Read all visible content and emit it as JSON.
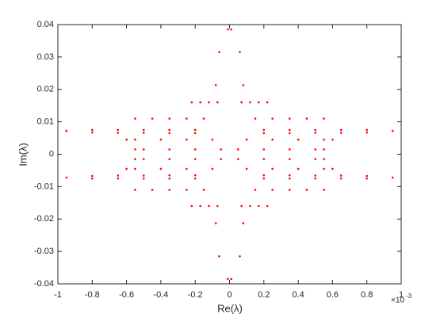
{
  "chart_data": {
    "type": "scatter",
    "xlabel": "Re(λ)",
    "ylabel": "Im(λ)",
    "x_exponent_base": "×10",
    "x_exponent": "-3",
    "color": "#ff0000",
    "xlim": [
      -1,
      1
    ],
    "xticks": [
      -1,
      -0.8,
      -0.6,
      -0.4,
      -0.2,
      0,
      0.2,
      0.4,
      0.6,
      0.8,
      1
    ],
    "ylim": [
      -0.04,
      0.04
    ],
    "yticks": [
      -0.04,
      -0.03,
      -0.02,
      -0.01,
      0,
      0.01,
      0.02,
      0.03,
      0.04
    ],
    "x": [
      0.01,
      0.06,
      0.08,
      0.07,
      0.12,
      0.17,
      0.22,
      0.15,
      0.25,
      0.35,
      0.45,
      0.55,
      0.2,
      0.35,
      0.5,
      0.65,
      0.8,
      0.95,
      0.2,
      0.35,
      0.5,
      0.65,
      0.8,
      0.1,
      0.25,
      0.4,
      0.55,
      0.6,
      0.05,
      0.2,
      0.35,
      0.5,
      0.55,
      -0.01,
      -0.06,
      -0.08,
      -0.07,
      -0.12,
      -0.17,
      -0.22,
      -0.15,
      -0.25,
      -0.35,
      -0.45,
      -0.55,
      -0.2,
      -0.35,
      -0.5,
      -0.65,
      -0.8,
      -0.95,
      -0.2,
      -0.35,
      -0.5,
      -0.65,
      -0.8,
      -0.1,
      -0.25,
      -0.4,
      -0.55,
      -0.6,
      -0.05,
      -0.2,
      -0.35,
      -0.5,
      -0.55,
      0.01,
      0.06,
      0.08,
      0.07,
      0.12,
      0.17,
      0.22,
      0.15,
      0.25,
      0.35,
      0.45,
      0.55,
      0.2,
      0.35,
      0.5,
      0.65,
      0.8,
      0.95,
      0.2,
      0.35,
      0.5,
      0.65,
      0.8,
      0.1,
      0.25,
      0.4,
      0.55,
      0.6,
      0.05,
      0.2,
      0.35,
      0.5,
      0.55,
      -0.01,
      -0.06,
      -0.08,
      -0.07,
      -0.12,
      -0.17,
      -0.22,
      -0.15,
      -0.25,
      -0.35,
      -0.45,
      -0.55,
      -0.2,
      -0.35,
      -0.5,
      -0.65,
      -0.8,
      -0.95,
      -0.2,
      -0.35,
      -0.5,
      -0.65,
      -0.8,
      -0.1,
      -0.25,
      -0.4,
      -0.55,
      -0.6,
      -0.05,
      -0.2,
      -0.35,
      -0.5,
      -0.55
    ],
    "y": [
      0.0385,
      0.0315,
      0.0213,
      0.016,
      0.016,
      0.016,
      0.016,
      0.011,
      0.011,
      0.011,
      0.011,
      0.011,
      0.0075,
      0.0075,
      0.0075,
      0.0075,
      0.0075,
      0.0072,
      0.0065,
      0.0065,
      0.0066,
      0.0066,
      0.0067,
      0.0045,
      0.0045,
      0.0045,
      0.0045,
      0.0045,
      0.0015,
      0.0015,
      0.0015,
      0.0015,
      0.0015,
      0.0385,
      0.0315,
      0.0213,
      0.016,
      0.016,
      0.016,
      0.016,
      0.011,
      0.011,
      0.011,
      0.011,
      0.011,
      0.0075,
      0.0075,
      0.0075,
      0.0075,
      0.0075,
      0.0072,
      0.0065,
      0.0065,
      0.0066,
      0.0066,
      0.0067,
      0.0045,
      0.0045,
      0.0045,
      0.0045,
      0.0045,
      0.0015,
      0.0015,
      0.0015,
      0.0015,
      0.0015,
      -0.0385,
      -0.0315,
      -0.0213,
      -0.016,
      -0.016,
      -0.016,
      -0.016,
      -0.011,
      -0.011,
      -0.011,
      -0.011,
      -0.011,
      -0.0075,
      -0.0075,
      -0.0075,
      -0.0075,
      -0.0075,
      -0.0072,
      -0.0065,
      -0.0065,
      -0.0066,
      -0.0066,
      -0.0067,
      -0.0045,
      -0.0045,
      -0.0045,
      -0.0045,
      -0.0045,
      -0.0015,
      -0.0015,
      -0.0015,
      -0.0015,
      -0.0015,
      -0.0385,
      -0.0315,
      -0.0213,
      -0.016,
      -0.016,
      -0.016,
      -0.016,
      -0.011,
      -0.011,
      -0.011,
      -0.011,
      -0.011,
      -0.0075,
      -0.0075,
      -0.0075,
      -0.0075,
      -0.0075,
      -0.0072,
      -0.0065,
      -0.0065,
      -0.0066,
      -0.0066,
      -0.0067,
      -0.0045,
      -0.0045,
      -0.0045,
      -0.0045,
      -0.0045,
      -0.0015,
      -0.0015,
      -0.0015,
      -0.0015,
      -0.0015
    ]
  }
}
